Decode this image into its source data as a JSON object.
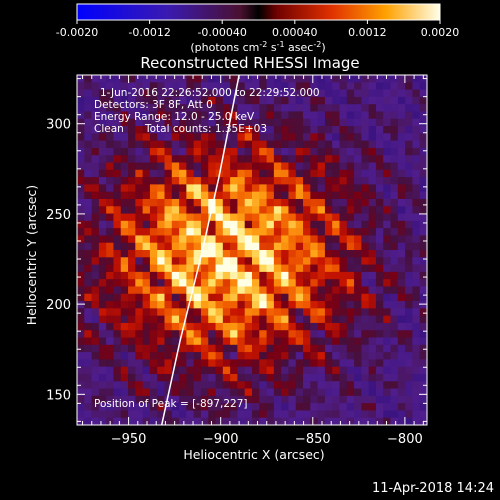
{
  "colorbar": {
    "ticks": [
      "-0.0020",
      "-0.0012",
      "-0.00040",
      "0.00040",
      "0.0012",
      "0.0020"
    ],
    "units": "(photons cm",
    "units_full_parts": [
      "(photons cm",
      "-2",
      " s",
      "-1",
      " asec",
      "-2",
      ")"
    ],
    "range": [
      -0.002,
      0.002
    ]
  },
  "chart_data": {
    "type": "heatmap",
    "title": "Reconstructed RHESSI Image",
    "xlabel": "Heliocentric X (arcsec)",
    "ylabel": "Heliocentric Y (arcsec)",
    "xlim": [
      -978,
      -788
    ],
    "ylim": [
      133,
      327
    ],
    "x_ticks": [
      -950,
      -900,
      -850,
      -800
    ],
    "y_ticks": [
      150,
      200,
      250,
      300
    ],
    "x_tick_labels": [
      "−950",
      "−900",
      "−850",
      "−800"
    ],
    "y_tick_labels": [
      "150",
      "200",
      "250",
      "300"
    ],
    "peak": [
      -897,
      227
    ],
    "annotations": {
      "time": "1-Jun-2016 22:26:52.000 to 22:29:52.000",
      "detectors": "Detectors: 3F 8F, Att 0",
      "energy": "Energy Range: 12.0 - 25.0 keV",
      "method": "Clean",
      "counts": "Total counts: 1.35E+03",
      "peak_label": "Position of Peak = [-897,227]"
    },
    "limb_points": [
      [
        -932,
        133
      ],
      [
        -922,
        180
      ],
      [
        -911,
        225
      ],
      [
        -901,
        270
      ],
      [
        -890,
        327
      ]
    ]
  },
  "footer": {
    "date": "11-Apr-2018 14:24"
  }
}
